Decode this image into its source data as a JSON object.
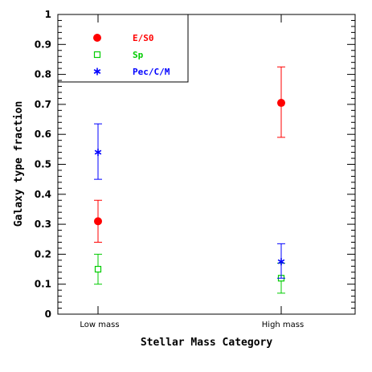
{
  "chart_data": {
    "type": "scatter",
    "title": "",
    "xlabel": "Stellar Mass Category",
    "ylabel": "Galaxy type fraction",
    "categories": [
      "Low mass",
      "High mass"
    ],
    "ylim": [
      0,
      1
    ],
    "yticks": [
      "0",
      "0.1",
      "0.2",
      "0.3",
      "0.4",
      "0.5",
      "0.6",
      "0.7",
      "0.8",
      "0.9",
      "1"
    ],
    "grid": false,
    "legend_position": "top-left",
    "series": [
      {
        "name": "E/S0",
        "color": "#ff0000",
        "marker": "filled-circle",
        "values": [
          0.31,
          0.705
        ],
        "err_low": [
          0.24,
          0.59
        ],
        "err_high": [
          0.38,
          0.825
        ]
      },
      {
        "name": "Sp",
        "color": "#00cc00",
        "marker": "open-square",
        "values": [
          0.15,
          0.12
        ],
        "err_low": [
          0.1,
          0.07
        ],
        "err_high": [
          0.2,
          0.17
        ]
      },
      {
        "name": "Pec/C/M",
        "color": "#0000ff",
        "marker": "asterisk",
        "values": [
          0.54,
          0.175
        ],
        "err_low": [
          0.45,
          0.12
        ],
        "err_high": [
          0.635,
          0.235
        ]
      }
    ]
  }
}
